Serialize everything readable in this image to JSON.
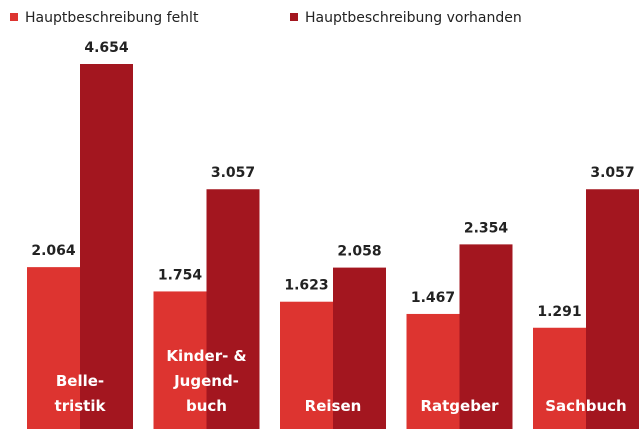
{
  "chart_data": {
    "type": "bar",
    "categories": [
      "Belle-\ntristik",
      "Kinder- &\nJugend-\nbuch",
      "Reisen",
      "Ratgeber",
      "Sachbuch"
    ],
    "series": [
      {
        "name": "Hauptbeschreibung fehlt",
        "color": "#dd3430",
        "values": [
          2064,
          1754,
          1623,
          1467,
          1291
        ],
        "value_labels": [
          "2.064",
          "1.754",
          "1.623",
          "1.467",
          "1.291"
        ]
      },
      {
        "name": "Hauptbeschreibung vorhanden",
        "color": "#a3161f",
        "values": [
          4654,
          3057,
          2058,
          2354,
          3057
        ],
        "value_labels": [
          "4.654",
          "3.057",
          "2.058",
          "2.354",
          "3.057"
        ]
      }
    ]
  }
}
